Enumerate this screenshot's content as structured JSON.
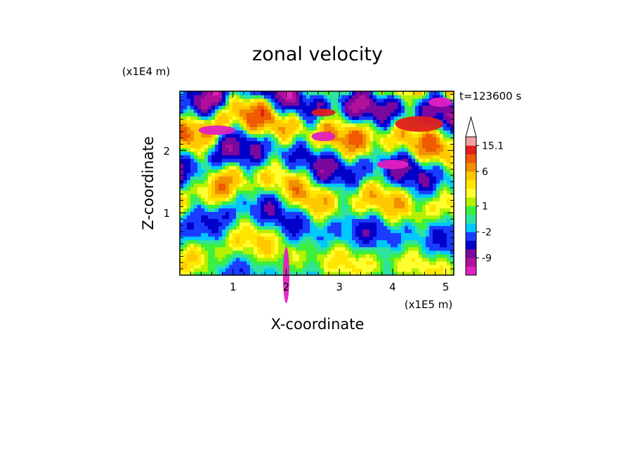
{
  "chart_data": {
    "type": "heatmap",
    "title": "zonal velocity",
    "xlabel": "X-coordinate",
    "ylabel": "Z-coordinate",
    "x_scale_label": "(x1E5 m)",
    "y_scale_label": "(x1E4 m)",
    "time_label": "t=123600 s",
    "xlim": [
      0,
      5.15
    ],
    "ylim": [
      0,
      2.95
    ],
    "x_ticks": [
      "1",
      "2",
      "3",
      "4",
      "5"
    ],
    "x_tick_values": [
      1,
      2,
      3,
      4,
      5
    ],
    "y_ticks": [
      "1",
      "2"
    ],
    "y_tick_values": [
      1,
      2
    ],
    "colorbar": {
      "labels": [
        "15.1",
        "6",
        "1",
        "-2",
        "-9"
      ],
      "label_values": [
        15.1,
        6,
        1,
        -2,
        -9
      ],
      "levels": [
        -16,
        -12,
        -9,
        -6,
        -4,
        -2,
        -1,
        0,
        1,
        2,
        3,
        4,
        6,
        8,
        11,
        15.1
      ],
      "colors": [
        "#e020c0",
        "#b0109a",
        "#7a089e",
        "#0000c8",
        "#1a3cff",
        "#00c8ff",
        "#30e2a0",
        "#3cf03c",
        "#b4f000",
        "#ffff30",
        "#ffe600",
        "#ffc800",
        "#f09000",
        "#f05a00",
        "#e01e1e",
        "#f4a0a0"
      ],
      "over_arrow_color": "#ffffff"
    },
    "features": [
      {
        "x": 2.0,
        "z": 0.0,
        "w": 0.12,
        "h": 0.9,
        "value": -16
      },
      {
        "x": 2.7,
        "z": 2.55,
        "w": 0.45,
        "h": 0.12,
        "value": 14
      },
      {
        "x": 2.7,
        "z": 2.15,
        "w": 0.45,
        "h": 0.15,
        "value": -14
      },
      {
        "x": 0.7,
        "z": 2.25,
        "w": 0.7,
        "h": 0.15,
        "value": -14
      },
      {
        "x": 4.0,
        "z": 1.7,
        "w": 0.6,
        "h": 0.15,
        "value": -14
      },
      {
        "x": 4.9,
        "z": 2.7,
        "w": 0.45,
        "h": 0.15,
        "value": -14
      },
      {
        "x": 4.5,
        "z": 2.3,
        "w": 0.9,
        "h": 0.25,
        "value": 14
      }
    ]
  }
}
